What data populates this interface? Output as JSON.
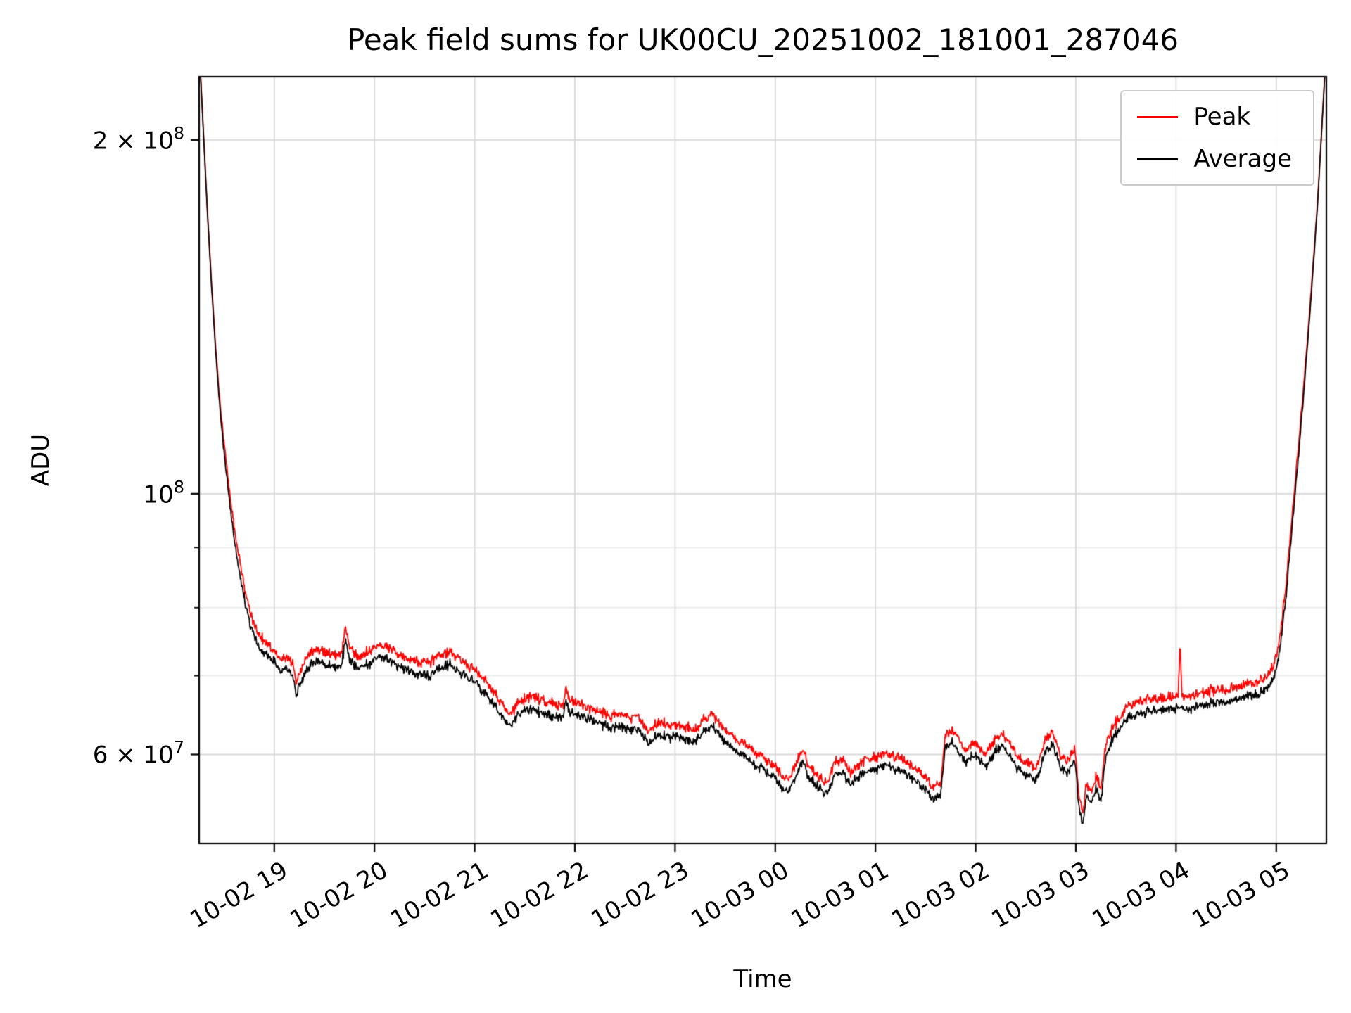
{
  "chart_data": {
    "type": "line",
    "title": "Peak field sums for UK00CU_20251002_181001_287046",
    "xlabel": "Time",
    "ylabel": "ADU",
    "x_axis": {
      "domain_hours": [
        0,
        11.25
      ],
      "ticks": [
        {
          "hour": 0.75,
          "label": "10-02 19"
        },
        {
          "hour": 1.75,
          "label": "10-02 20"
        },
        {
          "hour": 2.75,
          "label": "10-02 21"
        },
        {
          "hour": 3.75,
          "label": "10-02 22"
        },
        {
          "hour": 4.75,
          "label": "10-02 23"
        },
        {
          "hour": 5.75,
          "label": "10-03 00"
        },
        {
          "hour": 6.75,
          "label": "10-03 01"
        },
        {
          "hour": 7.75,
          "label": "10-03 02"
        },
        {
          "hour": 8.75,
          "label": "10-03 03"
        },
        {
          "hour": 9.75,
          "label": "10-03 04"
        },
        {
          "hour": 10.75,
          "label": "10-03 05"
        }
      ]
    },
    "y_axis": {
      "scale": "log",
      "range": [
        50400000,
        226400000
      ],
      "ticks": [
        {
          "value": 200000000,
          "base": "2 × 10",
          "exp": "8"
        },
        {
          "value": 100000000,
          "base": "10",
          "exp": "8"
        },
        {
          "value": 60000000,
          "base": "6 × 10",
          "exp": "7"
        }
      ],
      "minor_ticks": [
        70000000,
        80000000,
        90000000
      ],
      "grid": true,
      "grid_color": "#d9d9d9",
      "grid_minor_color": "#ebebeb"
    },
    "series": [
      {
        "name": "Peak",
        "color": "#ff0000",
        "ratio": 1.018,
        "noise": 0.012
      },
      {
        "name": "Average",
        "color": "#000000",
        "ratio": 1.0,
        "noise": 0.005
      }
    ],
    "shared_noise": 0.009,
    "peak_spikes": [
      {
        "t": 9.79,
        "ratio": 1.11,
        "width": 0.018
      }
    ],
    "values_unit": 10000000,
    "average_keypoints": [
      [
        0,
        24
      ],
      [
        0.04,
        20.5
      ],
      [
        0.08,
        17.5
      ],
      [
        0.12,
        15.2
      ],
      [
        0.16,
        13.4
      ],
      [
        0.2,
        12
      ],
      [
        0.25,
        10.8
      ],
      [
        0.3,
        9.9
      ],
      [
        0.35,
        9.15
      ],
      [
        0.4,
        8.6
      ],
      [
        0.45,
        8.15
      ],
      [
        0.5,
        7.8
      ],
      [
        0.55,
        7.55
      ],
      [
        0.62,
        7.35
      ],
      [
        0.7,
        7.25
      ],
      [
        0.75,
        7.18
      ],
      [
        0.82,
        7.05
      ],
      [
        0.88,
        7.12
      ],
      [
        0.93,
        7
      ],
      [
        0.97,
        6.78
      ],
      [
        1.02,
        6.92
      ],
      [
        1.08,
        7.1
      ],
      [
        1.15,
        7.18
      ],
      [
        1.25,
        7.18
      ],
      [
        1.35,
        7.12
      ],
      [
        1.42,
        7.15
      ],
      [
        1.46,
        7.5
      ],
      [
        1.5,
        7.22
      ],
      [
        1.6,
        7.12
      ],
      [
        1.7,
        7.17
      ],
      [
        1.78,
        7.28
      ],
      [
        1.85,
        7.25
      ],
      [
        1.95,
        7.18
      ],
      [
        2.05,
        7.1
      ],
      [
        2.18,
        7.02
      ],
      [
        2.3,
        7
      ],
      [
        2.42,
        7.12
      ],
      [
        2.5,
        7.15
      ],
      [
        2.6,
        7.05
      ],
      [
        2.7,
        6.95
      ],
      [
        2.78,
        6.88
      ],
      [
        2.88,
        6.72
      ],
      [
        2.98,
        6.55
      ],
      [
        3.06,
        6.42
      ],
      [
        3.12,
        6.35
      ],
      [
        3.18,
        6.48
      ],
      [
        3.25,
        6.55
      ],
      [
        3.35,
        6.55
      ],
      [
        3.45,
        6.5
      ],
      [
        3.55,
        6.45
      ],
      [
        3.63,
        6.42
      ],
      [
        3.66,
        6.68
      ],
      [
        3.7,
        6.5
      ],
      [
        3.8,
        6.48
      ],
      [
        3.9,
        6.42
      ],
      [
        4,
        6.38
      ],
      [
        4.1,
        6.32
      ],
      [
        4.2,
        6.35
      ],
      [
        4.3,
        6.3
      ],
      [
        4.4,
        6.28
      ],
      [
        4.49,
        6.12
      ],
      [
        4.58,
        6.25
      ],
      [
        4.68,
        6.2
      ],
      [
        4.75,
        6.22
      ],
      [
        4.85,
        6.18
      ],
      [
        4.95,
        6.15
      ],
      [
        5.05,
        6.28
      ],
      [
        5.12,
        6.35
      ],
      [
        5.2,
        6.2
      ],
      [
        5.3,
        6.1
      ],
      [
        5.42,
        6
      ],
      [
        5.55,
        5.88
      ],
      [
        5.65,
        5.8
      ],
      [
        5.75,
        5.72
      ],
      [
        5.82,
        5.62
      ],
      [
        5.88,
        5.58
      ],
      [
        5.95,
        5.72
      ],
      [
        6.02,
        5.92
      ],
      [
        6.08,
        5.75
      ],
      [
        6.18,
        5.62
      ],
      [
        6.27,
        5.55
      ],
      [
        6.35,
        5.78
      ],
      [
        6.42,
        5.82
      ],
      [
        6.5,
        5.65
      ],
      [
        6.58,
        5.75
      ],
      [
        6.65,
        5.8
      ],
      [
        6.75,
        5.82
      ],
      [
        6.85,
        5.88
      ],
      [
        6.95,
        5.82
      ],
      [
        7.05,
        5.78
      ],
      [
        7.15,
        5.7
      ],
      [
        7.25,
        5.6
      ],
      [
        7.33,
        5.5
      ],
      [
        7.4,
        5.55
      ],
      [
        7.45,
        6.1
      ],
      [
        7.52,
        6.15
      ],
      [
        7.58,
        6.05
      ],
      [
        7.65,
        5.9
      ],
      [
        7.72,
        6
      ],
      [
        7.78,
        5.95
      ],
      [
        7.85,
        5.85
      ],
      [
        7.95,
        6.05
      ],
      [
        8.02,
        6.1
      ],
      [
        8.1,
        5.95
      ],
      [
        8.18,
        5.82
      ],
      [
        8.28,
        5.75
      ],
      [
        8.35,
        5.7
      ],
      [
        8.45,
        6.05
      ],
      [
        8.52,
        6.1
      ],
      [
        8.6,
        5.85
      ],
      [
        8.68,
        5.78
      ],
      [
        8.74,
        5.95
      ],
      [
        8.78,
        5.4
      ],
      [
        8.82,
        5.25
      ],
      [
        8.86,
        5.55
      ],
      [
        8.9,
        5.45
      ],
      [
        8.95,
        5.6
      ],
      [
        9,
        5.5
      ],
      [
        9.05,
        5.95
      ],
      [
        9.1,
        6.15
      ],
      [
        9.18,
        6.3
      ],
      [
        9.28,
        6.45
      ],
      [
        9.38,
        6.5
      ],
      [
        9.48,
        6.55
      ],
      [
        9.58,
        6.52
      ],
      [
        9.68,
        6.55
      ],
      [
        9.75,
        6.58
      ],
      [
        9.85,
        6.55
      ],
      [
        9.95,
        6.6
      ],
      [
        10.05,
        6.62
      ],
      [
        10.15,
        6.65
      ],
      [
        10.25,
        6.65
      ],
      [
        10.35,
        6.68
      ],
      [
        10.45,
        6.72
      ],
      [
        10.55,
        6.75
      ],
      [
        10.65,
        6.82
      ],
      [
        10.72,
        6.95
      ],
      [
        10.78,
        7.3
      ],
      [
        10.85,
        8.2
      ],
      [
        10.92,
        9.6
      ],
      [
        11,
        11.5
      ],
      [
        11.08,
        14
      ],
      [
        11.16,
        17.5
      ],
      [
        11.25,
        24
      ]
    ]
  }
}
